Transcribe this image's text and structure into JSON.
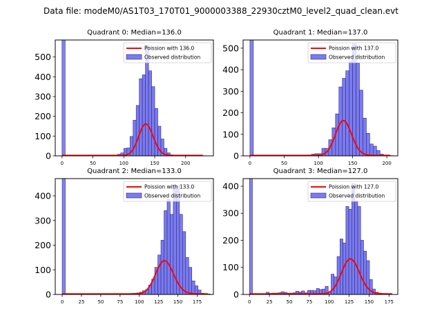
{
  "figure": {
    "suptitle": "Data file: modeM0/AS1T03_170T01_9000003388_22930cztM0_level2_quad_clean.evt"
  },
  "colors": {
    "bar_fill": "#7b7bef",
    "bar_edge": "#2b2b80",
    "poisson_line": "#ff0000",
    "axis": "#000000"
  },
  "chart_data": [
    {
      "type": "bar",
      "title": "Quadrant 0: Median=136.0",
      "median": 136.0,
      "xlabel": "",
      "ylabel": "",
      "xlim": [
        -11,
        245
      ],
      "ylim": [
        0,
        586
      ],
      "xticks": [
        0,
        50,
        100,
        150,
        200
      ],
      "yticks": [
        0,
        100,
        200,
        300,
        400,
        500
      ],
      "legend": {
        "position": "top-right",
        "entries": [
          "Poission with 136.0",
          "Observed distribution"
        ]
      },
      "bin_width": 5,
      "zero_bin": {
        "x": 0,
        "value": 600
      },
      "bins_start": 80,
      "values": [
        2,
        4,
        8,
        15,
        38,
        40,
        98,
        180,
        255,
        390,
        410,
        560,
        430,
        350,
        240,
        150,
        85,
        38,
        15,
        5,
        3,
        2,
        1,
        1,
        1,
        1,
        1,
        1,
        1,
        1
      ],
      "poisson_mean": 136.0,
      "poisson_scale": 4650,
      "curve_range": [
        0,
        228
      ]
    },
    {
      "type": "bar",
      "title": "Quadrant 1: Median=137.0",
      "median": 137.0,
      "xlabel": "",
      "ylabel": "",
      "xlim": [
        -10,
        216
      ],
      "ylim": [
        0,
        538
      ],
      "xticks": [
        0,
        50,
        100,
        150,
        200
      ],
      "yticks": [
        0,
        100,
        200,
        300,
        400,
        500
      ],
      "legend": {
        "position": "top-right",
        "entries": [
          "Poission with 137.0",
          "Observed distribution"
        ]
      },
      "bin_width": 5,
      "zero_bin": {
        "x": 0,
        "value": 560
      },
      "bins_start": 80,
      "values": [
        2,
        4,
        8,
        10,
        10,
        35,
        35,
        75,
        130,
        195,
        320,
        360,
        395,
        440,
        520,
        430,
        305,
        175,
        105,
        55,
        45,
        25,
        8,
        3,
        2,
        1
      ],
      "poisson_mean": 137.0,
      "poisson_scale": 4750,
      "curve_range": [
        0,
        205
      ]
    },
    {
      "type": "bar",
      "title": "Quadrant 2: Median=133.0",
      "median": 133.0,
      "xlabel": "",
      "ylabel": "",
      "xlim": [
        -9,
        196
      ],
      "ylim": [
        0,
        470
      ],
      "xticks": [
        0,
        25,
        50,
        75,
        100,
        125,
        150,
        175
      ],
      "yticks": [
        0,
        100,
        200,
        300,
        400
      ],
      "legend": {
        "position": "top-right",
        "entries": [
          "Poission with 133.0",
          "Observed distribution"
        ]
      },
      "bin_width": 4,
      "zero_bin": {
        "x": 0,
        "value": 480
      },
      "bins_start": 68,
      "values": [
        1,
        1,
        1,
        2,
        3,
        4,
        5,
        6,
        9,
        15,
        20,
        38,
        62,
        110,
        160,
        220,
        340,
        385,
        325,
        445,
        440,
        325,
        255,
        150,
        110,
        55,
        35,
        18,
        5,
        3,
        2
      ],
      "poisson_mean": 133.0,
      "poisson_scale": 3900,
      "curve_range": [
        0,
        189
      ]
    },
    {
      "type": "bar",
      "title": "Quadrant 3: Median=127.0",
      "median": 127.0,
      "xlabel": "",
      "ylabel": "",
      "xlim": [
        -8,
        186
      ],
      "ylim": [
        0,
        428
      ],
      "xticks": [
        0,
        25,
        50,
        75,
        100,
        125,
        150,
        175
      ],
      "yticks": [
        0,
        100,
        200,
        300,
        400
      ],
      "legend": {
        "position": "top-right",
        "entries": [
          "Poission with 127.0",
          "Observed distribution"
        ]
      },
      "bin_width": 3.7,
      "zero_bin": {
        "x": 0,
        "value": 440
      },
      "bins_start": 21,
      "values": [
        8,
        4,
        5,
        5,
        6,
        10,
        8,
        5,
        5,
        6,
        12,
        9,
        13,
        6,
        15,
        15,
        14,
        22,
        18,
        20,
        30,
        10,
        75,
        65,
        140,
        205,
        190,
        325,
        315,
        410,
        345,
        325,
        200,
        160,
        125,
        55,
        20,
        8,
        5,
        2
      ],
      "poisson_mean": 127.0,
      "poisson_scale": 3650,
      "curve_range": [
        0,
        179
      ]
    }
  ]
}
